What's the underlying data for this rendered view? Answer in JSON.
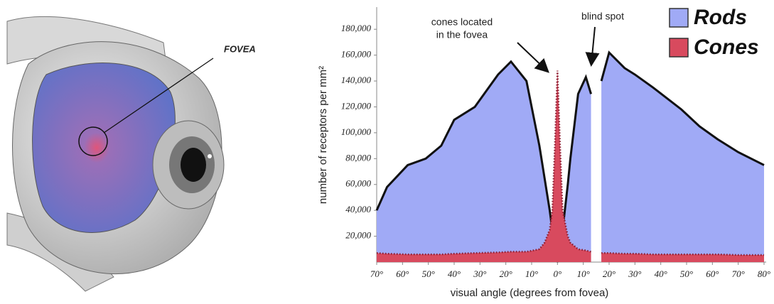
{
  "illustration": {
    "label": "FOVEA"
  },
  "chart_data": {
    "type": "area",
    "xlabel": "visual angle (degrees from fovea)",
    "ylabel": "number of receptors per mm²",
    "x": [
      -70,
      -66,
      -58,
      -51,
      -45,
      -40,
      -32,
      -23,
      -18,
      -12,
      -7,
      -5,
      -3,
      -2,
      -1,
      0,
      1,
      2,
      4,
      5,
      8,
      11,
      13,
      15,
      17,
      20,
      26,
      30,
      37,
      48,
      55,
      62,
      70,
      80
    ],
    "series": [
      {
        "name": "Rods",
        "color": "#a0aaf6",
        "values": [
          40000,
          58000,
          75000,
          80000,
          90000,
          110000,
          120000,
          145000,
          155000,
          140000,
          90000,
          65000,
          40000,
          25000,
          10000,
          0,
          10000,
          25000,
          60000,
          80000,
          130000,
          143000,
          130000,
          null,
          140000,
          162000,
          150000,
          145000,
          135000,
          118000,
          105000,
          95000,
          85000,
          75000
        ]
      },
      {
        "name": "Cones",
        "color": "#d84a5e",
        "values": [
          7000,
          6500,
          6000,
          6000,
          6000,
          6500,
          7000,
          7500,
          8000,
          8000,
          10000,
          15000,
          25000,
          40000,
          90000,
          148000,
          90000,
          40000,
          20000,
          15000,
          10000,
          9000,
          8000,
          null,
          7000,
          7000,
          6500,
          6500,
          6000,
          6000,
          6000,
          6000,
          5500,
          5500
        ]
      }
    ],
    "xlim": [
      -70,
      80
    ],
    "xticks": [
      {
        "value": -70,
        "label": "70°"
      },
      {
        "value": -60,
        "label": "60°"
      },
      {
        "value": -50,
        "label": "50°"
      },
      {
        "value": -40,
        "label": "40°"
      },
      {
        "value": -30,
        "label": "30°"
      },
      {
        "value": -20,
        "label": "20°"
      },
      {
        "value": -10,
        "label": "10°"
      },
      {
        "value": 0,
        "label": "0°"
      },
      {
        "value": 10,
        "label": "10°"
      },
      {
        "value": 20,
        "label": "20°"
      },
      {
        "value": 30,
        "label": "30°"
      },
      {
        "value": 40,
        "label": "40°"
      },
      {
        "value": 50,
        "label": "50°"
      },
      {
        "value": 60,
        "label": "60°"
      },
      {
        "value": 70,
        "label": "70°"
      },
      {
        "value": 80,
        "label": "80°"
      }
    ],
    "ylim": [
      0,
      190000
    ],
    "yticks": [
      {
        "value": 20000,
        "label": "20,000"
      },
      {
        "value": 40000,
        "label": "40,000"
      },
      {
        "value": 60000,
        "label": "60,000"
      },
      {
        "value": 80000,
        "label": "80,000"
      },
      {
        "value": 100000,
        "label": "100,000"
      },
      {
        "value": 120000,
        "label": "120,000"
      },
      {
        "value": 140000,
        "label": "140,000"
      },
      {
        "value": 160000,
        "label": "160,000"
      },
      {
        "value": 180000,
        "label": "180,000"
      }
    ],
    "legend": "upper right",
    "annotations": [
      [
        "cones located",
        "in the fovea"
      ],
      [
        "blind spot"
      ]
    ]
  }
}
